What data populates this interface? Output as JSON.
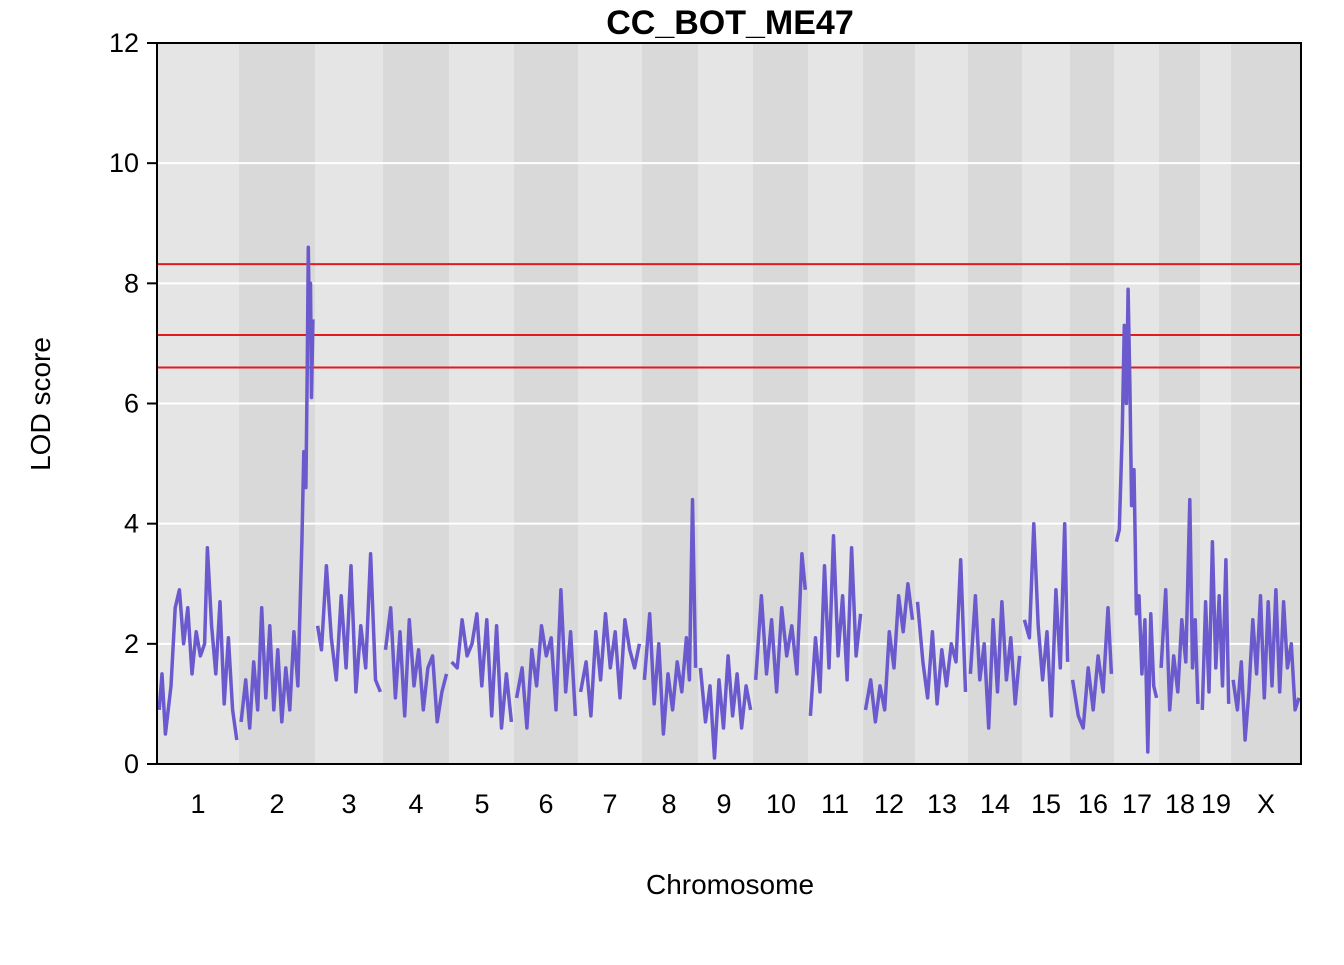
{
  "chart_data": {
    "type": "line",
    "title": "CC_BOT_ME47",
    "xlabel": "Chromosome",
    "ylabel": "LOD score",
    "ylim": [
      0,
      12
    ],
    "yticks": [
      0,
      2,
      4,
      6,
      8,
      10,
      12
    ],
    "grid": true,
    "line_color": "#6a5acd",
    "threshold_color": "#e41a1c",
    "band_colors": [
      "#e5e5e5",
      "#d9d9d9"
    ],
    "thresholds": [
      8.32,
      7.14,
      6.6
    ],
    "chromosomes": [
      "1",
      "2",
      "3",
      "4",
      "5",
      "6",
      "7",
      "8",
      "9",
      "10",
      "11",
      "12",
      "13",
      "14",
      "15",
      "16",
      "17",
      "18",
      "19",
      "X"
    ],
    "series": [
      {
        "values": [
          [
            [
              0.8,
              0.9
            ],
            [
              1.8,
              1.5
            ],
            [
              3,
              0.5
            ],
            [
              5,
              1.3
            ],
            [
              6.5,
              2.6
            ],
            [
              8,
              2.9
            ],
            [
              9.5,
              2.0
            ],
            [
              11,
              2.6
            ],
            [
              12.5,
              1.5
            ],
            [
              14,
              2.2
            ],
            [
              15.5,
              1.8
            ],
            [
              17,
              2.0
            ],
            [
              18,
              3.6
            ],
            [
              19.5,
              2.3
            ],
            [
              21,
              1.5
            ],
            [
              22.5,
              2.7
            ],
            [
              24,
              1.0
            ],
            [
              25.5,
              2.1
            ],
            [
              27,
              0.9
            ],
            [
              28.5,
              0.4
            ]
          ],
          [
            [
              0.8,
              0.7
            ],
            [
              2.5,
              1.4
            ],
            [
              4,
              0.6
            ],
            [
              5.5,
              1.7
            ],
            [
              7,
              0.9
            ],
            [
              8.5,
              2.6
            ],
            [
              10,
              1.1
            ],
            [
              11.5,
              2.3
            ],
            [
              13,
              0.9
            ],
            [
              14.5,
              1.9
            ],
            [
              16,
              0.7
            ],
            [
              17.5,
              1.6
            ],
            [
              19,
              0.9
            ],
            [
              20.5,
              2.2
            ],
            [
              22,
              1.3
            ],
            [
              23.5,
              3.7
            ],
            [
              24.2,
              5.2
            ],
            [
              25,
              4.6
            ],
            [
              25.5,
              6.5
            ],
            [
              25.9,
              8.6
            ],
            [
              26.3,
              7.3
            ],
            [
              26.7,
              8.0
            ],
            [
              27.1,
              6.1
            ],
            [
              27.6,
              7.4
            ]
          ],
          [
            [
              0.8,
              2.3
            ],
            [
              2,
              1.9
            ],
            [
              3.5,
              3.3
            ],
            [
              5,
              2.1
            ],
            [
              6.5,
              1.4
            ],
            [
              8,
              2.8
            ],
            [
              9.5,
              1.6
            ],
            [
              11,
              3.3
            ],
            [
              12.5,
              1.2
            ],
            [
              14,
              2.3
            ],
            [
              15.5,
              1.6
            ],
            [
              17,
              3.5
            ],
            [
              18.5,
              1.4
            ],
            [
              20,
              1.2
            ]
          ],
          [
            [
              0.8,
              1.9
            ],
            [
              2.5,
              2.6
            ],
            [
              4,
              1.1
            ],
            [
              5.5,
              2.2
            ],
            [
              7,
              0.8
            ],
            [
              8.5,
              2.4
            ],
            [
              10,
              1.3
            ],
            [
              11.5,
              1.9
            ],
            [
              13,
              0.9
            ],
            [
              14.5,
              1.6
            ],
            [
              16,
              1.8
            ],
            [
              17.5,
              0.7
            ],
            [
              19,
              1.2
            ],
            [
              20.5,
              1.5
            ]
          ],
          [
            [
              0.8,
              1.7
            ],
            [
              2.5,
              1.6
            ],
            [
              4,
              2.4
            ],
            [
              5.5,
              1.8
            ],
            [
              7,
              2.0
            ],
            [
              8.5,
              2.5
            ],
            [
              10,
              1.3
            ],
            [
              11.5,
              2.4
            ],
            [
              13,
              0.8
            ],
            [
              14.5,
              2.3
            ],
            [
              16,
              0.6
            ],
            [
              17.5,
              1.5
            ],
            [
              19,
              0.7
            ]
          ],
          [
            [
              0.8,
              1.1
            ],
            [
              2.5,
              1.6
            ],
            [
              4,
              0.6
            ],
            [
              5.5,
              1.9
            ],
            [
              7,
              1.3
            ],
            [
              8.5,
              2.3
            ],
            [
              10,
              1.8
            ],
            [
              11.5,
              2.1
            ],
            [
              13,
              0.9
            ],
            [
              14.5,
              2.9
            ],
            [
              16,
              1.2
            ],
            [
              17.5,
              2.2
            ],
            [
              19,
              0.8
            ]
          ],
          [
            [
              0.8,
              1.2
            ],
            [
              2.5,
              1.7
            ],
            [
              4,
              0.8
            ],
            [
              5.5,
              2.2
            ],
            [
              7,
              1.4
            ],
            [
              8.5,
              2.5
            ],
            [
              10,
              1.6
            ],
            [
              11.5,
              2.2
            ],
            [
              13,
              1.1
            ],
            [
              14.5,
              2.4
            ],
            [
              16,
              1.9
            ],
            [
              17.5,
              1.6
            ],
            [
              19,
              2.0
            ]
          ],
          [
            [
              0.8,
              1.4
            ],
            [
              2.5,
              2.5
            ],
            [
              4,
              1.0
            ],
            [
              5.5,
              2.0
            ],
            [
              7,
              0.5
            ],
            [
              8.5,
              1.5
            ],
            [
              10,
              0.9
            ],
            [
              11.5,
              1.7
            ],
            [
              13,
              1.2
            ],
            [
              14.5,
              2.1
            ],
            [
              15.5,
              1.4
            ],
            [
              16.5,
              4.4
            ],
            [
              17.5,
              1.6
            ]
          ],
          [
            [
              0.8,
              1.6
            ],
            [
              2.5,
              0.7
            ],
            [
              4,
              1.3
            ],
            [
              5.5,
              0.1
            ],
            [
              7,
              1.4
            ],
            [
              8.5,
              0.6
            ],
            [
              10,
              1.8
            ],
            [
              11.5,
              0.8
            ],
            [
              13,
              1.5
            ],
            [
              14.5,
              0.6
            ],
            [
              16,
              1.3
            ],
            [
              17.5,
              0.9
            ]
          ],
          [
            [
              0.8,
              1.4
            ],
            [
              2.5,
              2.8
            ],
            [
              4,
              1.5
            ],
            [
              5.5,
              2.4
            ],
            [
              7,
              1.2
            ],
            [
              8.5,
              2.6
            ],
            [
              10,
              1.8
            ],
            [
              11.5,
              2.3
            ],
            [
              13,
              1.5
            ],
            [
              14.5,
              3.5
            ],
            [
              15.5,
              2.9
            ]
          ],
          [
            [
              0.8,
              0.8
            ],
            [
              2.5,
              2.1
            ],
            [
              4,
              1.2
            ],
            [
              5.5,
              3.3
            ],
            [
              7,
              1.6
            ],
            [
              8.5,
              3.8
            ],
            [
              10,
              1.8
            ],
            [
              11.5,
              2.8
            ],
            [
              13,
              1.4
            ],
            [
              14.5,
              3.6
            ],
            [
              16,
              1.8
            ],
            [
              17.5,
              2.5
            ]
          ],
          [
            [
              0.8,
              0.9
            ],
            [
              2.5,
              1.4
            ],
            [
              4,
              0.7
            ],
            [
              5.5,
              1.3
            ],
            [
              7,
              0.9
            ],
            [
              8.5,
              2.2
            ],
            [
              10,
              1.6
            ],
            [
              11.5,
              2.8
            ],
            [
              13,
              2.2
            ],
            [
              14.5,
              3.0
            ],
            [
              16,
              2.4
            ]
          ],
          [
            [
              0.8,
              2.7
            ],
            [
              2.5,
              1.7
            ],
            [
              4,
              1.1
            ],
            [
              5.5,
              2.2
            ],
            [
              7,
              1.0
            ],
            [
              8.5,
              1.9
            ],
            [
              10,
              1.3
            ],
            [
              11.5,
              2.0
            ],
            [
              13,
              1.7
            ],
            [
              14.5,
              3.4
            ],
            [
              16,
              1.2
            ]
          ],
          [
            [
              0.8,
              1.5
            ],
            [
              2.5,
              2.8
            ],
            [
              4,
              1.4
            ],
            [
              5.5,
              2.0
            ],
            [
              7,
              0.6
            ],
            [
              8.5,
              2.4
            ],
            [
              10,
              1.2
            ],
            [
              11.5,
              2.7
            ],
            [
              13,
              1.4
            ],
            [
              14.5,
              2.1
            ],
            [
              16,
              1.0
            ],
            [
              17.5,
              1.8
            ]
          ],
          [
            [
              0.8,
              2.4
            ],
            [
              2.5,
              2.1
            ],
            [
              4,
              4.0
            ],
            [
              5.5,
              2.3
            ],
            [
              7,
              1.4
            ],
            [
              8.5,
              2.2
            ],
            [
              10,
              0.8
            ],
            [
              11.5,
              2.9
            ],
            [
              13,
              1.6
            ],
            [
              14.5,
              4.0
            ],
            [
              15.5,
              1.7
            ]
          ],
          [
            [
              0.8,
              1.4
            ],
            [
              2.5,
              0.8
            ],
            [
              4,
              0.6
            ],
            [
              5.5,
              1.6
            ],
            [
              7,
              0.9
            ],
            [
              8.5,
              1.8
            ],
            [
              10,
              1.2
            ],
            [
              11.5,
              2.6
            ],
            [
              12.5,
              1.5
            ]
          ],
          [
            [
              0.8,
              3.7
            ],
            [
              1.8,
              3.9
            ],
            [
              2.8,
              5.5
            ],
            [
              3.5,
              7.3
            ],
            [
              4.2,
              6.0
            ],
            [
              4.8,
              7.9
            ],
            [
              5.4,
              6.3
            ],
            [
              6,
              4.3
            ],
            [
              6.8,
              4.9
            ],
            [
              7.6,
              2.5
            ],
            [
              8.5,
              2.8
            ],
            [
              9.5,
              1.5
            ],
            [
              10.5,
              2.4
            ],
            [
              11.5,
              0.2
            ],
            [
              12.5,
              2.5
            ],
            [
              13.5,
              1.3
            ],
            [
              14.5,
              1.1
            ]
          ],
          [
            [
              0.8,
              1.6
            ],
            [
              2.5,
              2.9
            ],
            [
              4,
              0.9
            ],
            [
              5.5,
              1.8
            ],
            [
              7,
              1.2
            ],
            [
              8.5,
              2.4
            ],
            [
              10,
              1.7
            ],
            [
              11.5,
              4.4
            ],
            [
              12.5,
              1.6
            ],
            [
              13.5,
              2.4
            ],
            [
              14.5,
              1.0
            ]
          ],
          [
            [
              0.8,
              0.9
            ],
            [
              2,
              2.7
            ],
            [
              3.2,
              1.2
            ],
            [
              4.4,
              3.7
            ],
            [
              5.6,
              1.6
            ],
            [
              6.8,
              2.8
            ],
            [
              8,
              1.3
            ],
            [
              9.2,
              3.4
            ],
            [
              10.2,
              1.0
            ]
          ],
          [
            [
              0.8,
              1.4
            ],
            [
              2.5,
              0.9
            ],
            [
              4,
              1.7
            ],
            [
              5.5,
              0.4
            ],
            [
              7,
              1.2
            ],
            [
              8.5,
              2.4
            ],
            [
              10,
              1.5
            ],
            [
              11.5,
              2.8
            ],
            [
              13,
              1.1
            ],
            [
              14.5,
              2.7
            ],
            [
              16,
              1.3
            ],
            [
              17.5,
              2.9
            ],
            [
              19,
              1.2
            ],
            [
              20.5,
              2.7
            ],
            [
              22,
              1.6
            ],
            [
              23.5,
              2.0
            ],
            [
              25,
              0.9
            ],
            [
              26.5,
              1.1
            ]
          ]
        ]
      }
    ]
  }
}
